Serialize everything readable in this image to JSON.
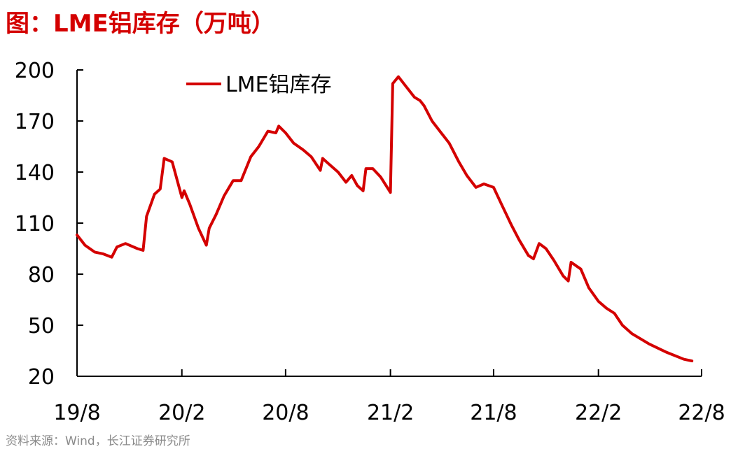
{
  "figure_title": "图：LME铝库存（万吨）",
  "source": "资料来源：Wind，长江证券研究所",
  "colors": {
    "line": "#d40000",
    "title": "#d40000",
    "axis": "#000000"
  },
  "chart_data": {
    "type": "line",
    "title": "",
    "xlabel": "",
    "ylabel": "",
    "ylim": [
      20,
      200
    ],
    "yticks": [
      20,
      50,
      80,
      110,
      140,
      170,
      200
    ],
    "xlim": [
      "2019-08",
      "2022-08"
    ],
    "xticks": [
      {
        "label": "19/8",
        "date": "2019-08"
      },
      {
        "label": "20/2",
        "date": "2020-02"
      },
      {
        "label": "20/8",
        "date": "2020-08"
      },
      {
        "label": "21/2",
        "date": "2021-02"
      },
      {
        "label": "21/8",
        "date": "2021-08"
      },
      {
        "label": "22/2",
        "date": "2022-02"
      },
      {
        "label": "22/8",
        "date": "2022-08"
      }
    ],
    "grid": false,
    "legend_position": "top-center",
    "series": [
      {
        "name": "LME铝库存",
        "color": "#d40000",
        "points": [
          [
            "2019-08-01",
            103
          ],
          [
            "2019-08-15",
            97
          ],
          [
            "2019-09-01",
            93
          ],
          [
            "2019-09-15",
            92
          ],
          [
            "2019-10-01",
            90
          ],
          [
            "2019-10-10",
            96
          ],
          [
            "2019-10-25",
            98
          ],
          [
            "2019-11-15",
            95
          ],
          [
            "2019-11-25",
            94
          ],
          [
            "2019-12-01",
            114
          ],
          [
            "2019-12-15",
            127
          ],
          [
            "2019-12-25",
            130
          ],
          [
            "2020-01-01",
            148
          ],
          [
            "2020-01-15",
            146
          ],
          [
            "2020-02-01",
            125
          ],
          [
            "2020-02-05",
            129
          ],
          [
            "2020-02-15",
            121
          ],
          [
            "2020-03-01",
            107
          ],
          [
            "2020-03-15",
            97
          ],
          [
            "2020-03-20",
            107
          ],
          [
            "2020-04-01",
            115
          ],
          [
            "2020-04-15",
            126
          ],
          [
            "2020-05-01",
            135
          ],
          [
            "2020-05-15",
            135
          ],
          [
            "2020-06-01",
            149
          ],
          [
            "2020-06-15",
            155
          ],
          [
            "2020-07-01",
            164
          ],
          [
            "2020-07-15",
            163
          ],
          [
            "2020-07-20",
            167
          ],
          [
            "2020-08-01",
            163
          ],
          [
            "2020-08-15",
            157
          ],
          [
            "2020-09-01",
            153
          ],
          [
            "2020-09-15",
            149
          ],
          [
            "2020-10-01",
            141
          ],
          [
            "2020-10-05",
            148
          ],
          [
            "2020-10-15",
            145
          ],
          [
            "2020-11-01",
            140
          ],
          [
            "2020-11-15",
            134
          ],
          [
            "2020-11-25",
            138
          ],
          [
            "2020-12-05",
            132
          ],
          [
            "2020-12-15",
            129
          ],
          [
            "2020-12-20",
            142
          ],
          [
            "2021-01-01",
            142
          ],
          [
            "2021-01-15",
            137
          ],
          [
            "2021-02-01",
            128
          ],
          [
            "2021-02-05",
            192
          ],
          [
            "2021-02-15",
            196
          ],
          [
            "2021-03-01",
            190
          ],
          [
            "2021-03-15",
            184
          ],
          [
            "2021-03-25",
            182
          ],
          [
            "2021-04-01",
            179
          ],
          [
            "2021-04-15",
            170
          ],
          [
            "2021-05-01",
            163
          ],
          [
            "2021-05-15",
            157
          ],
          [
            "2021-06-01",
            146
          ],
          [
            "2021-06-15",
            138
          ],
          [
            "2021-07-01",
            131
          ],
          [
            "2021-07-15",
            133
          ],
          [
            "2021-08-01",
            131
          ],
          [
            "2021-08-15",
            121
          ],
          [
            "2021-09-01",
            109
          ],
          [
            "2021-09-15",
            100
          ],
          [
            "2021-10-01",
            91
          ],
          [
            "2021-10-10",
            89
          ],
          [
            "2021-10-20",
            98
          ],
          [
            "2021-11-01",
            95
          ],
          [
            "2021-11-15",
            88
          ],
          [
            "2021-12-01",
            79
          ],
          [
            "2021-12-10",
            76
          ],
          [
            "2021-12-15",
            87
          ],
          [
            "2022-01-01",
            83
          ],
          [
            "2022-01-15",
            72
          ],
          [
            "2022-02-01",
            64
          ],
          [
            "2022-02-15",
            60
          ],
          [
            "2022-03-01",
            57
          ],
          [
            "2022-03-15",
            50
          ],
          [
            "2022-04-01",
            45
          ],
          [
            "2022-05-01",
            39
          ],
          [
            "2022-06-01",
            34
          ],
          [
            "2022-07-01",
            30
          ],
          [
            "2022-07-15",
            29
          ]
        ]
      }
    ]
  }
}
